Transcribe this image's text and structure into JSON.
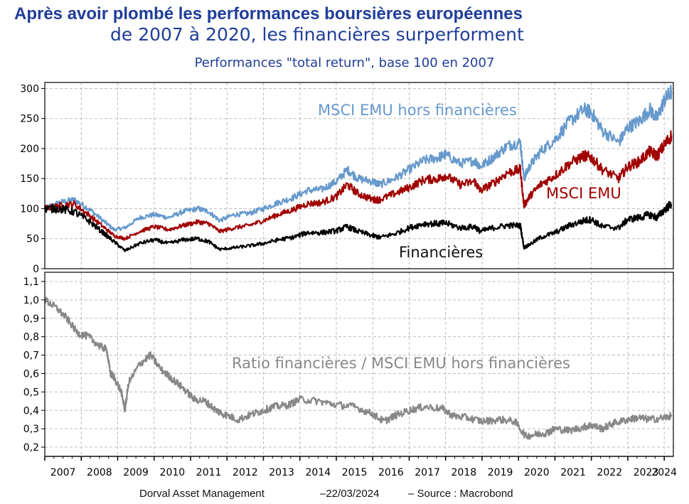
{
  "title_line1": "Après avoir plombé les performances boursières européennes",
  "title_line2": "de 2007 à 2020, les financières surperforment",
  "subtitle": "Performances \"total return\", base 100 en 2007",
  "footer": {
    "source_org": "Dorval Asset Management",
    "date": "–22/03/2024",
    "source": "–   Source : Macrobond"
  },
  "colors": {
    "msci_emu_ex_fin": "#6699cc",
    "msci_emu": "#a00000",
    "financials": "#000000",
    "ratio": "#888888",
    "title": "#1f3d99"
  },
  "chart_data": [
    {
      "type": "line",
      "title": "Performances \"total return\", base 100 en 2007",
      "x_ticks": [
        "2007",
        "2008",
        "2009",
        "2010",
        "2011",
        "2012",
        "2013",
        "2014",
        "2015",
        "2016",
        "2017",
        "2018",
        "2019",
        "2020",
        "2021",
        "2022",
        "2023",
        "2024"
      ],
      "xlim": [
        2007.0,
        2024.25
      ],
      "ylim": [
        0,
        310
      ],
      "y_ticks": [
        "0",
        "50",
        "100",
        "150",
        "200",
        "250",
        "300"
      ],
      "grid": true,
      "x": [
        2007.0,
        2007.4,
        2007.8,
        2008.2,
        2008.6,
        2008.9,
        2009.2,
        2009.6,
        2010.0,
        2010.4,
        2010.8,
        2011.2,
        2011.5,
        2011.8,
        2012.2,
        2012.6,
        2013.0,
        2013.4,
        2013.8,
        2014.2,
        2014.6,
        2015.0,
        2015.3,
        2015.6,
        2016.0,
        2016.2,
        2016.6,
        2017.0,
        2017.4,
        2017.8,
        2018.0,
        2018.4,
        2018.8,
        2018.95,
        2019.3,
        2019.7,
        2020.05,
        2020.15,
        2020.3,
        2020.6,
        2021.0,
        2021.4,
        2021.8,
        2022.0,
        2022.3,
        2022.75,
        2023.0,
        2023.3,
        2023.6,
        2023.8,
        2024.0,
        2024.2
      ],
      "series": [
        {
          "name": "MSCI EMU hors financières",
          "values": [
            100,
            110,
            115,
            100,
            80,
            65,
            68,
            85,
            90,
            85,
            95,
            100,
            95,
            80,
            90,
            92,
            100,
            110,
            118,
            130,
            132,
            145,
            165,
            150,
            145,
            140,
            150,
            165,
            180,
            185,
            190,
            175,
            180,
            170,
            185,
            205,
            210,
            150,
            170,
            195,
            215,
            245,
            265,
            260,
            230,
            210,
            235,
            245,
            265,
            250,
            280,
            295
          ]
        },
        {
          "name": "MSCI EMU",
          "values": [
            100,
            105,
            108,
            90,
            70,
            55,
            50,
            62,
            70,
            65,
            72,
            78,
            75,
            62,
            68,
            72,
            80,
            90,
            98,
            108,
            110,
            120,
            140,
            125,
            115,
            115,
            125,
            135,
            148,
            150,
            155,
            140,
            145,
            130,
            142,
            160,
            165,
            105,
            120,
            140,
            155,
            175,
            188,
            185,
            165,
            150,
            170,
            178,
            195,
            188,
            205,
            222
          ]
        },
        {
          "name": "Financières",
          "values": [
            100,
            100,
            95,
            80,
            60,
            45,
            30,
            42,
            48,
            42,
            48,
            50,
            45,
            32,
            35,
            38,
            42,
            48,
            52,
            60,
            60,
            63,
            70,
            62,
            55,
            52,
            58,
            68,
            75,
            75,
            76,
            68,
            70,
            62,
            68,
            72,
            72,
            35,
            40,
            52,
            60,
            72,
            80,
            82,
            70,
            68,
            82,
            85,
            90,
            85,
            98,
            108
          ]
        }
      ]
    },
    {
      "type": "line",
      "xlim": [
        2007.0,
        2024.25
      ],
      "ylim": [
        0.15,
        1.15
      ],
      "y_ticks": [
        "0,2",
        "0,3",
        "0,4",
        "0,5",
        "0,6",
        "0,7",
        "0,8",
        "0,9",
        "1,0",
        "1,1"
      ],
      "grid": true,
      "x": [
        2007.0,
        2007.3,
        2007.6,
        2007.9,
        2008.2,
        2008.5,
        2008.7,
        2008.8,
        2008.9,
        2009.1,
        2009.2,
        2009.3,
        2009.6,
        2009.9,
        2010.2,
        2010.5,
        2010.8,
        2011.1,
        2011.4,
        2011.7,
        2011.9,
        2012.3,
        2012.7,
        2013.0,
        2013.3,
        2013.7,
        2014.0,
        2014.5,
        2015.0,
        2015.5,
        2016.0,
        2016.3,
        2016.6,
        2017.0,
        2017.4,
        2017.9,
        2018.2,
        2018.6,
        2019.0,
        2019.5,
        2019.9,
        2020.2,
        2020.5,
        2020.8,
        2021.0,
        2021.4,
        2021.8,
        2022.0,
        2022.3,
        2022.6,
        2023.0,
        2023.3,
        2023.6,
        2024.0,
        2024.2
      ],
      "series": [
        {
          "name": "Ratio financières /  MSCI EMU hors financières",
          "values": [
            1.0,
            0.96,
            0.9,
            0.82,
            0.8,
            0.75,
            0.73,
            0.6,
            0.58,
            0.5,
            0.4,
            0.55,
            0.65,
            0.7,
            0.62,
            0.57,
            0.52,
            0.46,
            0.45,
            0.4,
            0.38,
            0.35,
            0.38,
            0.4,
            0.42,
            0.43,
            0.46,
            0.45,
            0.43,
            0.42,
            0.38,
            0.34,
            0.37,
            0.4,
            0.42,
            0.41,
            0.37,
            0.36,
            0.34,
            0.35,
            0.34,
            0.26,
            0.27,
            0.28,
            0.3,
            0.29,
            0.31,
            0.32,
            0.3,
            0.33,
            0.35,
            0.36,
            0.35,
            0.36,
            0.37
          ]
        }
      ]
    }
  ]
}
